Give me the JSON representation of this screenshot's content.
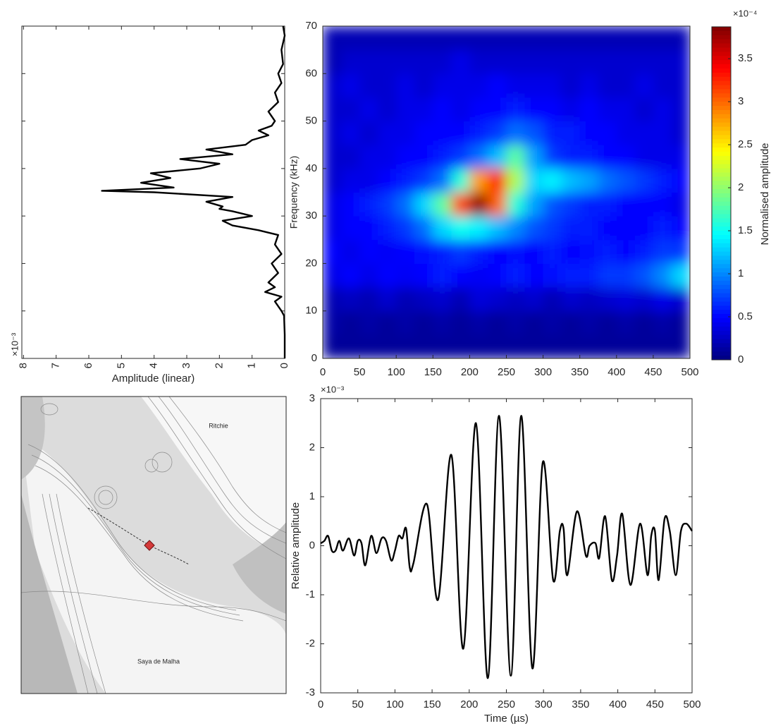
{
  "chart_data": [
    {
      "type": "spectrum",
      "xlabel": "Amplitude (linear)",
      "x_exponent": "×10⁻³",
      "xlim": [
        8.05,
        0
      ],
      "xticks": [
        8,
        7,
        6,
        5,
        4,
        3,
        2,
        1,
        0
      ],
      "ylim": [
        0,
        70
      ],
      "color": "#000000",
      "frequencies": [
        0,
        5,
        9,
        10,
        12,
        13,
        14,
        15,
        16,
        18,
        20,
        22,
        24,
        26,
        27,
        28,
        29,
        30,
        31,
        31.5,
        32,
        33,
        34,
        35,
        35.3,
        36,
        37,
        38,
        39,
        40,
        41,
        42,
        43,
        44,
        45,
        46,
        47,
        48,
        49,
        50,
        52,
        54,
        56,
        58,
        60,
        62,
        65,
        68,
        70
      ],
      "values": [
        0,
        0,
        0.02,
        0.1,
        0.3,
        0.1,
        0.6,
        0.3,
        0.5,
        0.2,
        0.4,
        0.1,
        0.3,
        0.2,
        0.8,
        1.6,
        1.9,
        1.0,
        1.6,
        2.0,
        1.9,
        2.4,
        1.6,
        4.0,
        5.6,
        3.4,
        4.4,
        3.5,
        4.1,
        2.6,
        2.0,
        3.2,
        1.6,
        2.4,
        1.2,
        1.0,
        0.5,
        0.8,
        0.4,
        0.3,
        0.5,
        0.2,
        0.3,
        0.1,
        0.2,
        0.05,
        0.1,
        0,
        0.05
      ]
    },
    {
      "type": "heatmap",
      "ylabel": "Frequency (kHz)",
      "xlim": [
        0,
        500
      ],
      "xticks": [
        0,
        50,
        100,
        150,
        200,
        250,
        300,
        350,
        400,
        450,
        500
      ],
      "ylim": [
        0,
        70
      ],
      "yticks": [
        0,
        10,
        20,
        30,
        40,
        50,
        60,
        70
      ],
      "colorbar": {
        "label": "Normalised amplitude",
        "exponent": "×10⁻⁴",
        "colormap": "jet",
        "lim": [
          0,
          3.87
        ],
        "ticks": [
          0,
          0.5,
          1,
          1.5,
          2,
          2.5,
          3,
          3.5
        ]
      },
      "z": [
        [
          0.1,
          0.1,
          0.1,
          0.1,
          0.1,
          0.1,
          0.1,
          0.1,
          0.1,
          0.1,
          0.1,
          0.1,
          0.1,
          0.1,
          0.1,
          0.1,
          0.1,
          0.1,
          0.1,
          0.1
        ],
        [
          0.15,
          0.1,
          0.15,
          0.1,
          0.15,
          0.1,
          0.15,
          0.1,
          0.15,
          0.1,
          0.15,
          0.1,
          0.15,
          0.1,
          0.15,
          0.1,
          0.15,
          0.1,
          0.15,
          0.1
        ],
        [
          0.2,
          0.25,
          0.2,
          0.3,
          0.2,
          0.25,
          0.3,
          0.2,
          0.35,
          0.3,
          0.25,
          0.3,
          0.2,
          0.3,
          0.25,
          0.3,
          0.35,
          0.3,
          0.4,
          0.3
        ],
        [
          0.4,
          0.5,
          0.4,
          0.5,
          0.45,
          0.5,
          0.6,
          0.5,
          0.45,
          0.5,
          0.6,
          0.5,
          0.55,
          0.6,
          0.6,
          0.7,
          0.7,
          0.8,
          1.0,
          1.3
        ],
        [
          0.5,
          0.4,
          0.5,
          0.45,
          0.5,
          0.55,
          0.6,
          0.7,
          0.6,
          0.5,
          0.55,
          0.5,
          0.6,
          0.5,
          0.55,
          0.6,
          0.5,
          0.6,
          0.7,
          0.7
        ],
        [
          0.4,
          0.5,
          0.5,
          0.6,
          0.7,
          0.9,
          1.3,
          1.5,
          1.4,
          1.2,
          1.0,
          0.8,
          0.7,
          0.6,
          0.6,
          0.5,
          0.5,
          0.5,
          0.6,
          0.5
        ],
        [
          0.4,
          0.5,
          0.6,
          0.7,
          0.9,
          1.3,
          1.8,
          3.1,
          3.8,
          3.0,
          1.6,
          1.1,
          0.8,
          0.7,
          0.6,
          0.6,
          0.5,
          0.5,
          0.5,
          0.4
        ],
        [
          0.3,
          0.4,
          0.4,
          0.5,
          0.6,
          0.7,
          0.9,
          1.6,
          2.8,
          3.3,
          2.1,
          1.3,
          1.4,
          1.2,
          1.1,
          0.9,
          0.8,
          0.7,
          0.6,
          0.5
        ],
        [
          0.3,
          0.3,
          0.4,
          0.4,
          0.5,
          0.5,
          0.6,
          0.7,
          0.9,
          1.2,
          1.8,
          1.1,
          0.7,
          0.6,
          0.6,
          0.5,
          0.5,
          0.4,
          0.4,
          0.4
        ],
        [
          0.3,
          0.4,
          0.3,
          0.4,
          0.4,
          0.5,
          0.5,
          0.5,
          0.6,
          0.7,
          0.9,
          0.8,
          0.6,
          0.6,
          0.5,
          0.5,
          0.4,
          0.4,
          0.4,
          0.3
        ],
        [
          0.3,
          0.3,
          0.4,
          0.3,
          0.4,
          0.4,
          0.5,
          0.4,
          0.5,
          0.5,
          0.6,
          0.5,
          0.5,
          0.4,
          0.5,
          0.4,
          0.4,
          0.3,
          0.4,
          0.3
        ],
        [
          0.3,
          0.4,
          0.3,
          0.3,
          0.4,
          0.3,
          0.4,
          0.4,
          0.4,
          0.5,
          0.4,
          0.4,
          0.4,
          0.3,
          0.4,
          0.3,
          0.3,
          0.4,
          0.3,
          0.3
        ],
        [
          0.2,
          0.3,
          0.3,
          0.3,
          0.3,
          0.3,
          0.3,
          0.4,
          0.3,
          0.3,
          0.3,
          0.3,
          0.3,
          0.3,
          0.3,
          0.3,
          0.3,
          0.3,
          0.3,
          0.3
        ],
        [
          0.2,
          0.2,
          0.2,
          0.2,
          0.2,
          0.2,
          0.2,
          0.2,
          0.2,
          0.2,
          0.2,
          0.2,
          0.2,
          0.2,
          0.2,
          0.2,
          0.2,
          0.2,
          0.2,
          0.2
        ]
      ]
    },
    {
      "type": "map",
      "labels": [
        "Ritchie",
        "Saya de Malha"
      ]
    },
    {
      "type": "line",
      "xlabel": "Time (µs)",
      "ylabel": "Relative amplitude",
      "y_exponent": "×10⁻³",
      "color": "#000000",
      "xlim": [
        0,
        500
      ],
      "xticks": [
        0,
        50,
        100,
        150,
        200,
        250,
        300,
        350,
        400,
        450,
        500
      ],
      "ylim": [
        -3,
        3
      ],
      "yticks": [
        -3,
        -2,
        -1,
        0,
        1,
        2,
        3
      ],
      "x": [
        0,
        5,
        10,
        15,
        20,
        25,
        30,
        38,
        45,
        50,
        55,
        60,
        68,
        75,
        82,
        88,
        95,
        100,
        105,
        110,
        115,
        120,
        125,
        143,
        158,
        176,
        192,
        209,
        225,
        240,
        256,
        270,
        285,
        299,
        313,
        322,
        327,
        332,
        345,
        357,
        362,
        370,
        375,
        383,
        392,
        399,
        406,
        417,
        430,
        440,
        445,
        450,
        455,
        463,
        470,
        478,
        485,
        492,
        500
      ],
      "values": [
        0.05,
        0.1,
        0.2,
        -0.1,
        -0.1,
        0.1,
        -0.1,
        0.15,
        -0.2,
        0.1,
        0.05,
        -0.4,
        0.2,
        -0.15,
        0.15,
        0.1,
        -0.3,
        -0.1,
        0.2,
        0.15,
        0.35,
        -0.45,
        -0.35,
        0.85,
        -1.1,
        1.85,
        -2.1,
        2.5,
        -2.7,
        2.65,
        -2.65,
        2.65,
        -2.5,
        1.7,
        -0.7,
        0.3,
        0.35,
        -0.6,
        0.7,
        -0.2,
        0,
        0.05,
        -0.25,
        0.6,
        -0.7,
        -0.2,
        0.65,
        -0.8,
        0.45,
        -0.6,
        0.2,
        0.3,
        -0.7,
        0.55,
        0.3,
        -0.6,
        0.3,
        0.45,
        0.3
      ]
    }
  ]
}
